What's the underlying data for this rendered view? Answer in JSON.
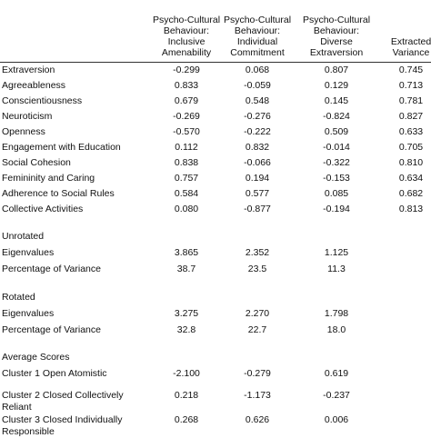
{
  "header": {
    "columns": [
      "Psycho-Cultural Behaviour: Inclusive Amenability",
      "Psycho-Cultural Behaviour: Individual Commitment",
      "Psycho-Cultural Behaviour: Diverse Extraversion",
      "Extracted Variance"
    ]
  },
  "table": {
    "rows": [
      [
        "Extraversion",
        "-0.299",
        "0.068",
        "0.807",
        "0.745"
      ],
      [
        "Agreeableness",
        "0.833",
        "-0.059",
        "0.129",
        "0.713"
      ],
      [
        "Conscientiousness",
        "0.679",
        "0.548",
        "0.145",
        "0.781"
      ],
      [
        "Neuroticism",
        "-0.269",
        "-0.276",
        "-0.824",
        "0.827"
      ],
      [
        "Openness",
        "-0.570",
        "-0.222",
        "0.509",
        "0.633"
      ],
      [
        "Engagement with Education",
        "0.112",
        "0.832",
        "-0.014",
        "0.705"
      ],
      [
        "Social Cohesion",
        "0.838",
        "-0.066",
        "-0.322",
        "0.810"
      ],
      [
        "Femininity and Caring",
        "0.757",
        "0.194",
        "-0.153",
        "0.634"
      ],
      [
        "Adherence to Social Rules",
        "0.584",
        "0.577",
        "0.085",
        "0.682"
      ],
      [
        "Collective Activities",
        "0.080",
        "-0.877",
        "-0.194",
        "0.813"
      ]
    ]
  },
  "unrotated": {
    "title": "Unrotated",
    "rows": [
      [
        "Eigenvalues",
        "3.865",
        "2.352",
        "1.125"
      ],
      [
        "Percentage of Variance",
        "38.7",
        "23.5",
        "11.3"
      ]
    ]
  },
  "rotated": {
    "title": "Rotated",
    "rows": [
      [
        "Eigenvalues",
        "3.275",
        "2.270",
        "1.798"
      ],
      [
        "Percentage of Variance",
        "32.8",
        "22.7",
        "18.0"
      ]
    ]
  },
  "average_scores": {
    "title": "Average Scores",
    "rows": [
      [
        "Cluster 1 Open Atomistic",
        "-2.100",
        "-0.279",
        "0.619"
      ],
      [
        "Cluster 2 Closed Collectively Reliant",
        "0.218",
        "-1.173",
        "-0.237"
      ],
      [
        "Cluster 3 Closed Individually Responsible",
        "0.268",
        "0.626",
        "0.006"
      ]
    ]
  }
}
